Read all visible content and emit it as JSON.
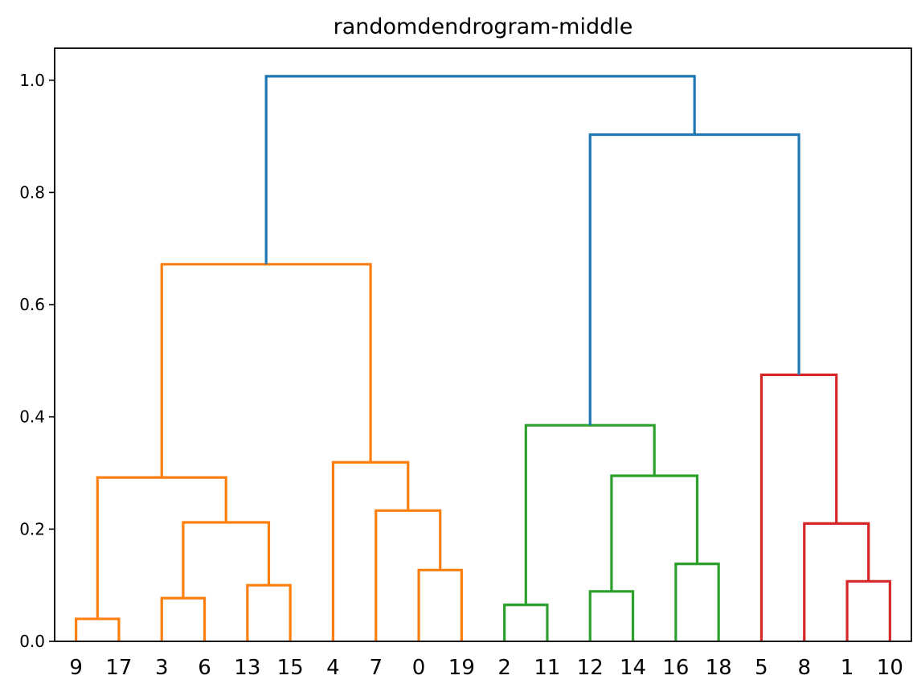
{
  "chart_data": {
    "type": "dendrogram",
    "title": "randomdendrogram-middle",
    "xlabel": "",
    "ylabel": "",
    "ylim": [
      0,
      1.057
    ],
    "yticks": [
      0.0,
      0.2,
      0.4,
      0.6,
      0.8,
      1.0
    ],
    "ytick_labels": [
      "0.0",
      "0.2",
      "0.4",
      "0.6",
      "0.8",
      "1.0"
    ],
    "grid": false,
    "leaves": [
      "9",
      "17",
      "3",
      "6",
      "13",
      "15",
      "4",
      "7",
      "0",
      "19",
      "2",
      "11",
      "12",
      "14",
      "16",
      "18",
      "5",
      "8",
      "1",
      "10"
    ],
    "cluster_colors": {
      "C0": "#1f77b4",
      "C1": "#ff7f0e",
      "C2": "#2ca02c",
      "C3": "#d62728"
    },
    "merges": [
      {
        "left": "9",
        "right": "17",
        "height": 0.04,
        "color": "C1"
      },
      {
        "left": "3",
        "right": "6",
        "height": 0.077,
        "color": "C1"
      },
      {
        "left": "13",
        "right": "15",
        "height": 0.1,
        "color": "C1"
      },
      {
        "left": "(3,6)",
        "right": "(13,15)",
        "height": 0.212,
        "color": "C1"
      },
      {
        "left": "(9,17)",
        "right": "((3,6),(13,15))",
        "height": 0.292,
        "color": "C1"
      },
      {
        "left": "0",
        "right": "19",
        "height": 0.127,
        "color": "C1"
      },
      {
        "left": "7",
        "right": "(0,19)",
        "height": 0.233,
        "color": "C1"
      },
      {
        "left": "4",
        "right": "(7,(0,19))",
        "height": 0.319,
        "color": "C1"
      },
      {
        "left": "orange-left-group",
        "right": "orange-right-group",
        "height": 0.672,
        "color": "C1"
      },
      {
        "left": "2",
        "right": "11",
        "height": 0.065,
        "color": "C2"
      },
      {
        "left": "12",
        "right": "14",
        "height": 0.089,
        "color": "C2"
      },
      {
        "left": "16",
        "right": "18",
        "height": 0.138,
        "color": "C2"
      },
      {
        "left": "(12,14)",
        "right": "(16,18)",
        "height": 0.295,
        "color": "C2"
      },
      {
        "left": "(2,11)",
        "right": "((12,14),(16,18))",
        "height": 0.385,
        "color": "C2"
      },
      {
        "left": "1",
        "right": "10",
        "height": 0.107,
        "color": "C3"
      },
      {
        "left": "8",
        "right": "(1,10)",
        "height": 0.21,
        "color": "C3"
      },
      {
        "left": "5",
        "right": "(8,(1,10))",
        "height": 0.475,
        "color": "C3"
      },
      {
        "left": "green-group",
        "right": "red-group",
        "height": 0.903,
        "color": "C0"
      },
      {
        "left": "orange-group",
        "right": "green-red-group",
        "height": 1.007,
        "color": "C0"
      }
    ]
  }
}
